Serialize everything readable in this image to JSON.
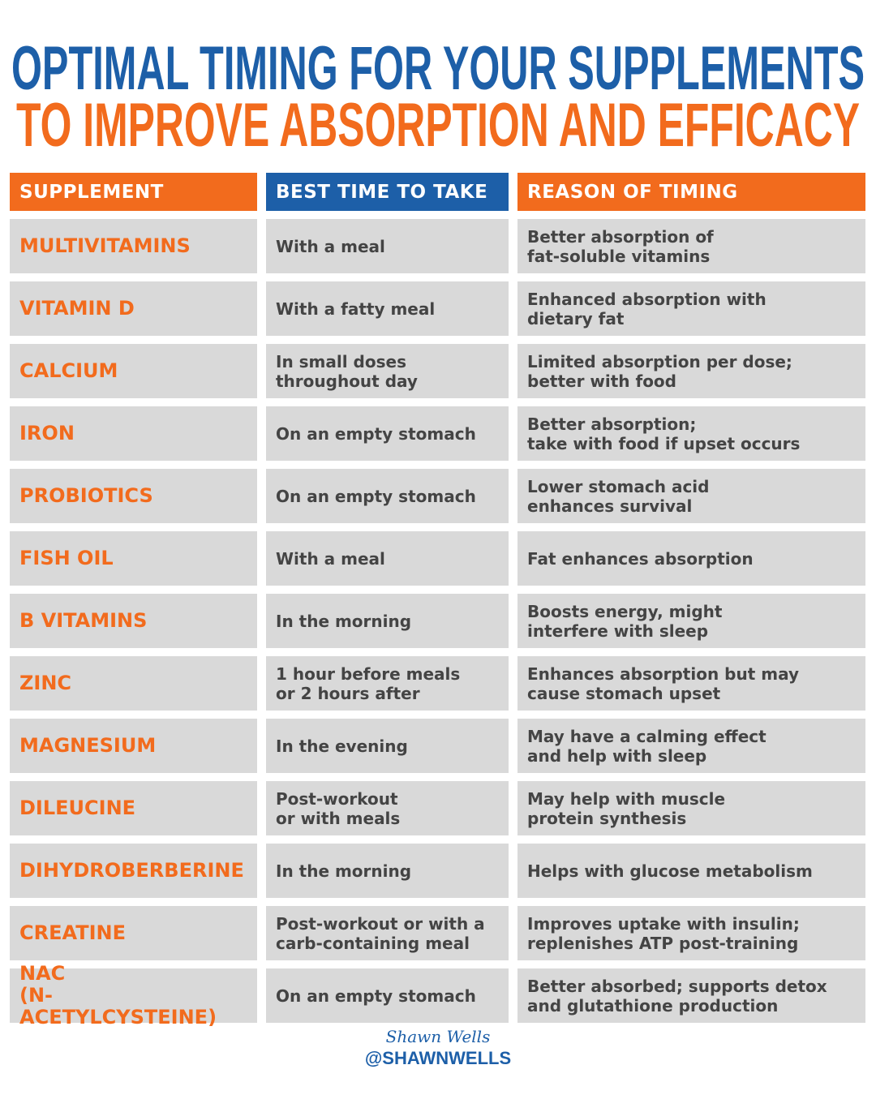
{
  "header": {
    "title": [
      "OPTIMAL TIMING FOR YOUR SUPPLEMENTS",
      "TO IMPROVE ABSORPTION AND EFFICACY"
    ]
  },
  "table": {
    "columns": [
      "SUPPLEMENT",
      "BEST TIME TO TAKE",
      "REASON OF TIMING"
    ],
    "rows": [
      [
        [
          "MULTIVITAMINS"
        ],
        [
          "With a meal"
        ],
        [
          "Better absorption of",
          "fat-soluble vitamins"
        ]
      ],
      [
        [
          "VITAMIN D"
        ],
        [
          "With a fatty meal"
        ],
        [
          "Enhanced absorption with",
          "dietary fat"
        ]
      ],
      [
        [
          "CALCIUM"
        ],
        [
          "In small doses",
          "throughout day"
        ],
        [
          "Limited absorption per dose;",
          "better with food"
        ]
      ],
      [
        [
          "IRON"
        ],
        [
          "On an empty stomach"
        ],
        [
          "Better absorption;",
          "take with food if upset occurs"
        ]
      ],
      [
        [
          "PROBIOTICS"
        ],
        [
          "On an empty stomach"
        ],
        [
          "Lower stomach acid",
          "enhances survival"
        ]
      ],
      [
        [
          "FISH OIL"
        ],
        [
          "With a meal"
        ],
        [
          "Fat enhances absorption"
        ]
      ],
      [
        [
          "B VITAMINS"
        ],
        [
          "In the morning"
        ],
        [
          "Boosts energy, might",
          "interfere with sleep"
        ]
      ],
      [
        [
          "ZINC"
        ],
        [
          "1 hour before meals",
          "or 2 hours after"
        ],
        [
          "Enhances absorption but may",
          "cause stomach upset"
        ]
      ],
      [
        [
          "MAGNESIUM"
        ],
        [
          "In the evening"
        ],
        [
          "May have a calming effect",
          "and help with sleep"
        ]
      ],
      [
        [
          "DILEUCINE"
        ],
        [
          "Post-workout",
          "or with meals"
        ],
        [
          "May help with muscle",
          "protein synthesis"
        ]
      ],
      [
        [
          "DIHYDROBERBERINE"
        ],
        [
          "In the morning"
        ],
        [
          "Helps with glucose metabolism"
        ]
      ],
      [
        [
          "CREATINE"
        ],
        [
          "Post-workout or with a",
          "carb-containing meal"
        ],
        [
          "Improves uptake with insulin;",
          "replenishes ATP post-training"
        ]
      ],
      [
        [
          "NAC",
          "(N-ACETYLCYSTEINE)"
        ],
        [
          "On an empty stomach"
        ],
        [
          "Better absorbed; supports detox",
          "and glutathione production"
        ]
      ]
    ]
  },
  "footer": {
    "signature": "Shawn Wells",
    "handle": "@SHAWNWELLS"
  }
}
